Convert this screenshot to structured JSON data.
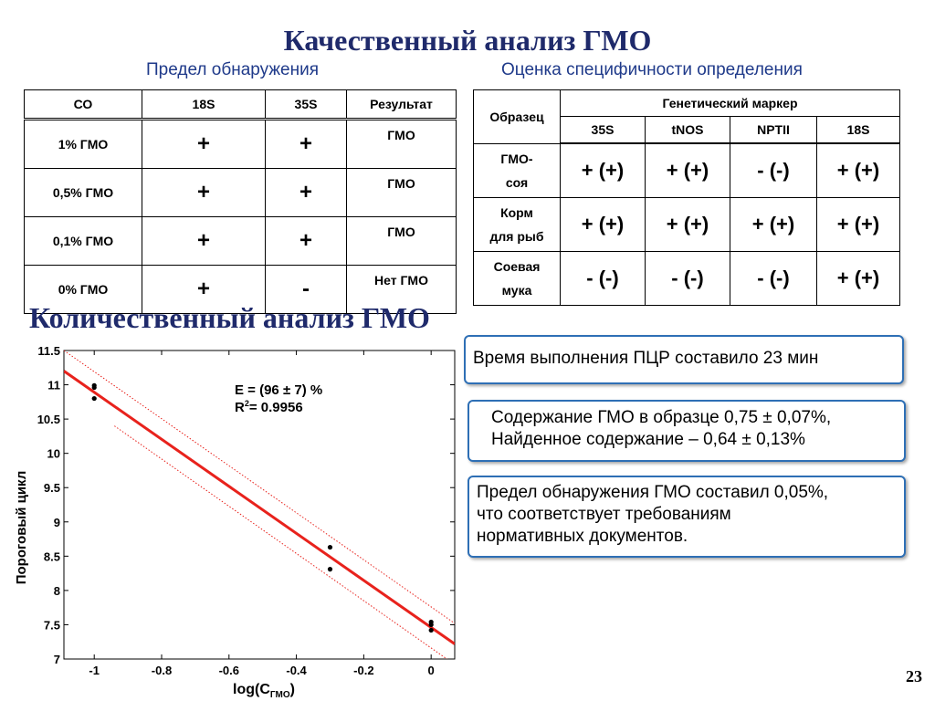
{
  "title": "Качественный анализ ГМО",
  "subtitle_left": "Предел обнаружения",
  "subtitle_right": "Оценка специфичности определения",
  "table_left": {
    "headers": [
      "СО",
      "18S",
      "35S",
      "Результат"
    ],
    "rows": [
      [
        "1% ГМО",
        "+",
        "+",
        "ГМО"
      ],
      [
        "0,5% ГМО",
        "+",
        "+",
        "ГМО"
      ],
      [
        "0,1% ГМО",
        "+",
        "+",
        "ГМО"
      ],
      [
        "0% ГМО",
        "+",
        "-",
        "Нет ГМО"
      ]
    ]
  },
  "table_right": {
    "header_sample": "Образец",
    "header_marker": "Генетический маркер",
    "markers": [
      "35S",
      "tNOS",
      "NPTII",
      "18S"
    ],
    "rows": [
      {
        "sample_line1": "ГМО-",
        "sample_line2": "соя",
        "values": [
          "+ (+)",
          "+ (+)",
          "- (-)",
          "+ (+)"
        ]
      },
      {
        "sample_line1": "Корм",
        "sample_line2": "для рыб",
        "values": [
          "+ (+)",
          "+ (+)",
          "+ (+)",
          "+ (+)"
        ]
      },
      {
        "sample_line1": "Соевая",
        "sample_line2": "мука",
        "values": [
          "- (-)",
          "- (-)",
          "- (-)",
          "+ (+)"
        ]
      }
    ]
  },
  "section2_title": "Количественный анализ ГМО",
  "box1_text": "Время выполнения ПЦР составило 23 мин",
  "box2_line1": "Содержание ГМО в образце 0,75 ± 0,07%,",
  "box2_line2": "Найденное содержание – 0,64 ± 0,13%",
  "box3_line1": "Предел обнаружения ГМО составил 0,05%,",
  "box3_line2": "что соответствует требованиям",
  "box3_line3": "нормативных документов.",
  "page_number": "23",
  "colors": {
    "title": "#1f2a6b",
    "box_border": "#2e6fb5",
    "fit_line": "#e8221c"
  },
  "chart_data": {
    "type": "scatter",
    "xlabel": "log(C",
    "xlabel_sub": "ГМО",
    "xlabel_close": ")",
    "ylabel": "Пороговый цикл",
    "xlim": [
      -1.09,
      0.07
    ],
    "ylim": [
      7,
      11.5
    ],
    "xticks": [
      -1,
      -0.8,
      -0.6,
      -0.4,
      -0.2,
      0
    ],
    "xtick_labels": [
      "-1",
      "-0.8",
      "-0.6",
      "-0.4",
      "-0.2",
      "0"
    ],
    "yticks": [
      7,
      7.5,
      8,
      8.5,
      9,
      9.5,
      10,
      10.5,
      11,
      11.5
    ],
    "ytick_labels": [
      "7",
      "7.5",
      "8",
      "8.5",
      "9",
      "9.5",
      "10",
      "10.5",
      "11",
      "11.5"
    ],
    "points": [
      {
        "x": -1,
        "y": 10.99
      },
      {
        "x": -1,
        "y": 10.96
      },
      {
        "x": -1,
        "y": 10.8
      },
      {
        "x": -0.3,
        "y": 8.63
      },
      {
        "x": -0.3,
        "y": 8.31
      },
      {
        "x": 0,
        "y": 7.54
      },
      {
        "x": 0,
        "y": 7.5
      },
      {
        "x": 0,
        "y": 7.42
      }
    ],
    "fit": {
      "x": [
        -1.09,
        0.07
      ],
      "y": [
        11.2,
        7.22
      ]
    },
    "conf_upper": {
      "x": [
        -1.09,
        0.07
      ],
      "y": [
        11.5,
        7.52
      ]
    },
    "conf_lower": {
      "x": [
        -0.94,
        0.07
      ],
      "y": [
        10.4,
        6.92
      ]
    },
    "annotation_line1": "E = (96 ± 7) %",
    "annotation_r": "R",
    "annotation_sup": "2",
    "annotation_line2": "= 0.9956"
  }
}
